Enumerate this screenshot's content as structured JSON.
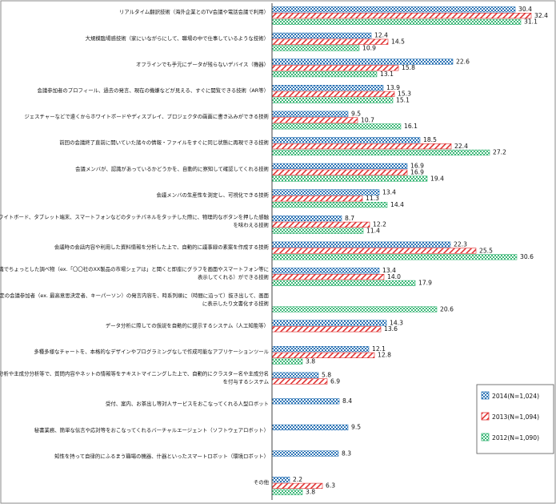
{
  "chart_data": {
    "type": "bar",
    "orientation": "horizontal",
    "xlim": [
      0,
      35
    ],
    "grid": false,
    "legend_position": "right",
    "categories": [
      "リアルタイム翻訳技術（海外企業とのTV会議や電話会議で利用）",
      "大規模臨場感技術（家にいながらにして、職場の中で仕事しているような技術）",
      "オフラインでも手元にデータが残らないデバイス（機器）",
      "会議参加者のプロフィール、過去の発言、現在の機嫌などが見える、すぐに閲覧できる技術（AR等）",
      "ジェスチャーなどで遠くからホワイトボードやディスプレイ、プロジェクタの画面に書き込みができる技術",
      "前回の会議終了直前に開いていた諸々の情報・ファイルをすぐに同じ状態に再現できる技術",
      "会議メンバが、認識があっているかどうかを、自動的に察知して確認してくれる技術",
      "会議メンバの生産性を測定し、可視化できる技術",
      "デジタルホワイトボード、タブレット端末、スマートフォンなどのタッチパネルをタッチした際に、物理的なボタンを押した感触を味わえる技術",
      "会議時の会話内容や利用した資料情報を分析した上で、自動的に議事録の素案を作成する技術",
      "音声認識でちょっとした調べ物（ex.「〇〇社のXX製品の市場シェアは」と聞くと即座にグラフを画面やスマートフォン等に表示してくれる）ができる技術",
      "ある特定の会議参加者（ex. 最高意思決定者、キーパーソン）の発言内容を、時系列順に（時間に沿って）抜き出して、画面に表示したり文書化する技術",
      "データ分析に際しての仮説を自動的に提示するシステム（人工知能等）",
      "多種多様なチャートを、本格的なデザインやプログラミングなしで作成可能なアプリケーションツール",
      "クラスター分析や主成分分析等で、質問内容やネットの情報等をテキストマイニングした上で、自動的にクラスター名や主成分名を付与するシステム",
      "受付、案内、お茶出し等対人サービスをおこなってくれる人型ロボット",
      "秘書業務、簡単な伝言や応対等をおこなってくれるバーチャルエージェント（ソフトウェアロボット）",
      "知性を持って自律的にふるまう職場の機器、什器といったスマートロボット（環境ロボット）",
      "その他"
    ],
    "series": [
      {
        "name": "2014(N=1,024)",
        "color": "#2e75b6",
        "values": [
          30.4,
          12.4,
          22.6,
          13.9,
          9.5,
          18.5,
          16.9,
          13.4,
          8.7,
          22.3,
          13.4,
          null,
          14.3,
          12.1,
          5.8,
          8.4,
          9.5,
          8.3,
          2.2
        ]
      },
      {
        "name": "2013(N=1,094)",
        "color": "#e03030",
        "values": [
          32.4,
          14.5,
          15.8,
          15.3,
          10.7,
          22.4,
          16.9,
          11.3,
          12.2,
          25.5,
          14.0,
          null,
          13.6,
          12.8,
          6.9,
          null,
          null,
          null,
          6.3
        ]
      },
      {
        "name": "2012(N=1,090)",
        "color": "#3cb878",
        "values": [
          31.1,
          10.9,
          13.1,
          15.1,
          16.1,
          27.2,
          19.4,
          14.4,
          11.4,
          30.6,
          17.9,
          20.6,
          null,
          3.8,
          null,
          null,
          null,
          null,
          3.8
        ]
      }
    ]
  }
}
